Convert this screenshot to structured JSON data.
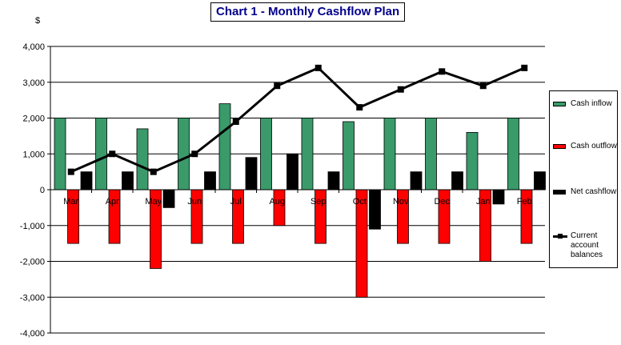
{
  "chart_data": {
    "type": "bar",
    "title": "Chart 1 - Monthly Cashflow Plan",
    "ylabel": "$",
    "xlabel": "",
    "ylim": [
      -4000,
      4000
    ],
    "yticks": [
      4000,
      3000,
      2000,
      1000,
      0,
      -1000,
      -2000,
      -3000,
      -4000
    ],
    "ytick_labels": [
      "4,000",
      "3,000",
      "2,000",
      "1,000",
      "0",
      "-1,000",
      "-2,000",
      "-3,000",
      "-4,000"
    ],
    "categories": [
      "Mar",
      "Apr",
      "May",
      "Jun",
      "Jul",
      "Aug",
      "Sep",
      "Oct",
      "Nov",
      "Dec",
      "Jan",
      "Feb"
    ],
    "series": [
      {
        "name": "Cash inflow",
        "kind": "bar",
        "color": "#3a9a6a",
        "values": [
          2000,
          2000,
          1700,
          2000,
          2400,
          2000,
          2000,
          1900,
          2000,
          2000,
          1600,
          2000
        ]
      },
      {
        "name": "Cash outflow",
        "kind": "bar",
        "color": "#ff0000",
        "values": [
          -1500,
          -1500,
          -2200,
          -1500,
          -1500,
          -1000,
          -1500,
          -3000,
          -1500,
          -1500,
          -2000,
          -1500
        ]
      },
      {
        "name": "Net cashflow",
        "kind": "bar",
        "color": "#000000",
        "values": [
          500,
          500,
          -500,
          500,
          900,
          1000,
          500,
          -1100,
          500,
          500,
          -400,
          500
        ]
      },
      {
        "name": "Current account balances",
        "kind": "line",
        "color": "#000000",
        "values": [
          500,
          1000,
          500,
          1000,
          1900,
          2900,
          3400,
          2300,
          2800,
          3300,
          2900,
          3400
        ]
      }
    ],
    "legend_position": "right",
    "grid": "horizontal"
  }
}
